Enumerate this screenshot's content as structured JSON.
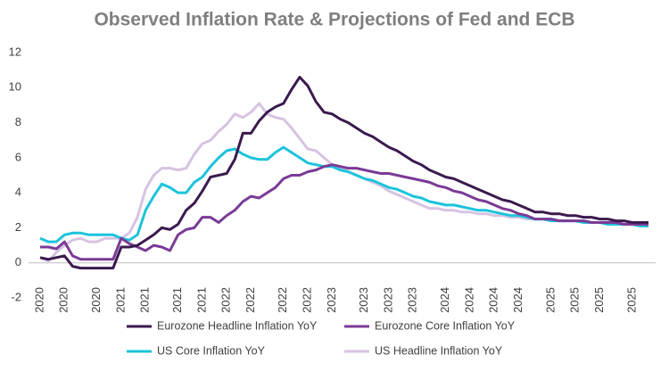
{
  "chart_data": {
    "type": "line",
    "title": "Observed Inflation Rate & Projections of Fed and ECB",
    "categories": [
      "2020",
      null,
      null,
      "2020",
      null,
      null,
      null,
      "2020",
      null,
      null,
      "2021",
      null,
      null,
      "2021",
      null,
      null,
      null,
      "2021",
      null,
      null,
      "2021",
      null,
      null,
      "2022",
      null,
      null,
      "2022",
      null,
      null,
      null,
      "2022",
      null,
      null,
      "2022",
      null,
      null,
      "2023",
      null,
      null,
      null,
      "2023",
      null,
      null,
      "2023",
      null,
      null,
      "2023",
      null,
      null,
      null,
      "2024",
      null,
      null,
      "2024",
      null,
      null,
      "2024",
      null,
      null,
      "2024",
      null,
      null,
      null,
      "2025",
      null,
      null,
      "2025",
      null,
      null,
      "2025",
      null,
      null,
      null,
      "2025",
      null,
      null
    ],
    "series": [
      {
        "name": "US Headline Inflation YoY",
        "color": "#d6c3e2",
        "values": [
          0.3,
          0.1,
          0.6,
          1.0,
          1.3,
          1.4,
          1.2,
          1.2,
          1.4,
          1.4,
          1.4,
          1.7,
          2.6,
          4.2,
          5.0,
          5.4,
          5.4,
          5.3,
          5.4,
          6.2,
          6.8,
          7.0,
          7.5,
          7.9,
          8.5,
          8.3,
          8.6,
          9.1,
          8.5,
          8.3,
          8.2,
          7.7,
          7.1,
          6.5,
          6.4,
          6.0,
          5.6,
          5.4,
          5.2,
          5.0,
          4.8,
          4.6,
          4.4,
          4.1,
          3.9,
          3.7,
          3.5,
          3.3,
          3.1,
          3.1,
          3.0,
          3.0,
          2.9,
          2.9,
          2.8,
          2.8,
          2.7,
          2.7,
          2.6,
          2.6,
          2.5,
          2.5,
          2.5,
          2.5,
          2.4,
          2.4,
          2.4,
          2.4,
          2.3,
          2.3,
          2.3,
          2.3,
          2.2,
          2.2,
          2.2,
          2.2
        ]
      },
      {
        "name": "US Core Inflation YoY",
        "color": "#1cc3db",
        "values": [
          1.4,
          1.2,
          1.2,
          1.6,
          1.7,
          1.7,
          1.6,
          1.6,
          1.6,
          1.6,
          1.4,
          1.3,
          1.6,
          3.0,
          3.8,
          4.5,
          4.3,
          4.0,
          4.0,
          4.6,
          4.9,
          5.5,
          6.0,
          6.4,
          6.5,
          6.2,
          6.0,
          5.9,
          5.9,
          6.3,
          6.6,
          6.3,
          6.0,
          5.7,
          5.6,
          5.5,
          5.5,
          5.3,
          5.2,
          5.0,
          4.8,
          4.7,
          4.5,
          4.3,
          4.2,
          4.0,
          3.8,
          3.7,
          3.5,
          3.4,
          3.3,
          3.3,
          3.2,
          3.1,
          3.0,
          3.0,
          2.9,
          2.8,
          2.7,
          2.7,
          2.6,
          2.5,
          2.5,
          2.4,
          2.4,
          2.4,
          2.4,
          2.3,
          2.3,
          2.3,
          2.2,
          2.2,
          2.2,
          2.2,
          2.1,
          2.1
        ]
      },
      {
        "name": "Eurozone Core Inflation YoY",
        "color": "#7a3b96",
        "values": [
          0.9,
          0.9,
          0.8,
          1.2,
          0.4,
          0.2,
          0.2,
          0.2,
          0.2,
          0.2,
          1.4,
          1.1,
          0.9,
          0.7,
          1.0,
          0.9,
          0.7,
          1.6,
          1.9,
          2.0,
          2.6,
          2.6,
          2.3,
          2.7,
          3.0,
          3.5,
          3.8,
          3.7,
          4.0,
          4.3,
          4.8,
          5.0,
          5.0,
          5.2,
          5.3,
          5.5,
          5.6,
          5.5,
          5.4,
          5.4,
          5.3,
          5.2,
          5.1,
          5.1,
          5.0,
          4.9,
          4.8,
          4.7,
          4.6,
          4.4,
          4.3,
          4.1,
          4.0,
          3.8,
          3.6,
          3.5,
          3.3,
          3.1,
          3.0,
          2.8,
          2.7,
          2.5,
          2.5,
          2.5,
          2.4,
          2.4,
          2.4,
          2.4,
          2.3,
          2.3,
          2.3,
          2.3,
          2.2,
          2.2,
          2.2,
          2.2
        ]
      },
      {
        "name": "Eurozone Headline Inflation YoY",
        "color": "#3b1a4e",
        "values": [
          0.3,
          0.2,
          0.3,
          0.4,
          -0.2,
          -0.3,
          -0.3,
          -0.3,
          -0.3,
          -0.3,
          0.9,
          0.9,
          1.0,
          1.3,
          1.6,
          2.0,
          1.9,
          2.2,
          3.0,
          3.4,
          4.1,
          4.9,
          5.0,
          5.1,
          5.9,
          7.4,
          7.4,
          8.1,
          8.6,
          8.9,
          9.1,
          9.9,
          10.6,
          10.1,
          9.2,
          8.6,
          8.5,
          8.2,
          8.0,
          7.7,
          7.4,
          7.2,
          6.9,
          6.6,
          6.4,
          6.1,
          5.8,
          5.6,
          5.3,
          5.1,
          4.9,
          4.8,
          4.6,
          4.4,
          4.2,
          4.0,
          3.8,
          3.6,
          3.5,
          3.3,
          3.1,
          2.9,
          2.9,
          2.8,
          2.8,
          2.7,
          2.7,
          2.6,
          2.6,
          2.5,
          2.5,
          2.4,
          2.4,
          2.3,
          2.3,
          2.3
        ]
      }
    ],
    "ylim": [
      -2,
      12
    ],
    "yticks": [
      -2,
      0,
      2,
      4,
      6,
      8,
      10,
      12
    ],
    "grid": false
  }
}
